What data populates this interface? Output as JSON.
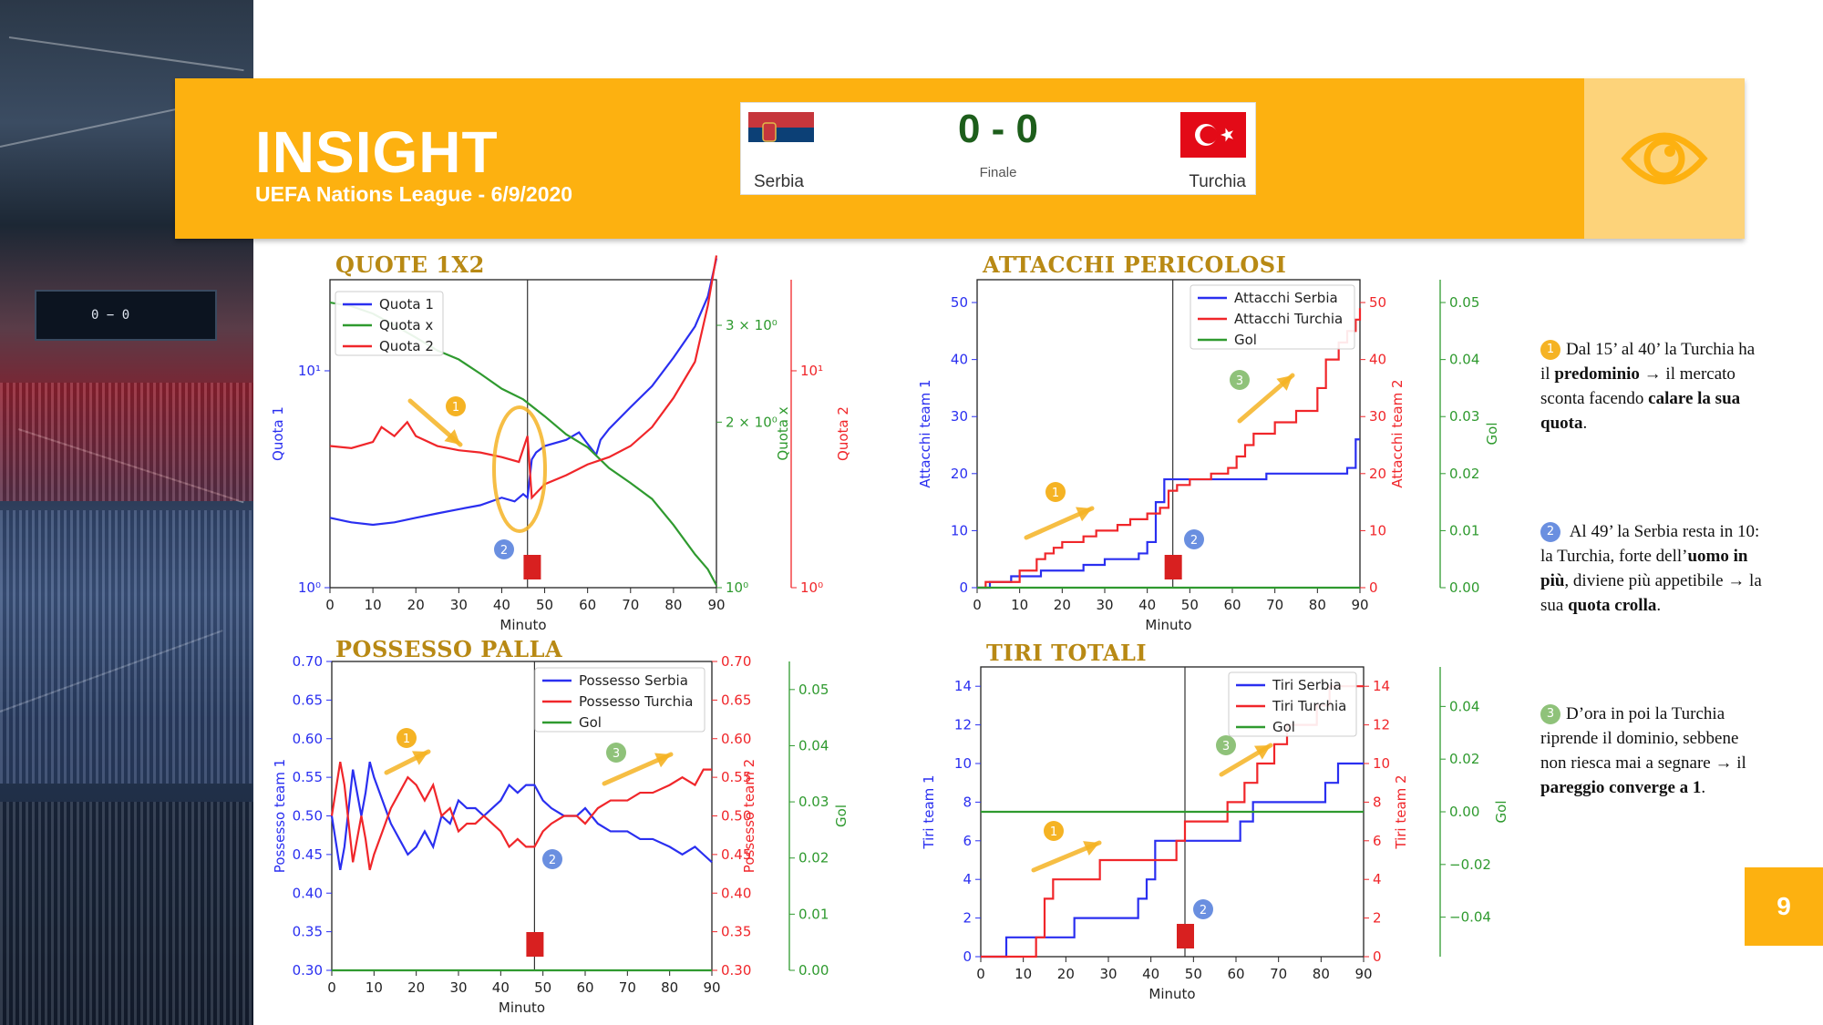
{
  "header": {
    "title": "INSIGHT",
    "subtitle": "UEFA Nations League  - 6/9/2020",
    "score": "0 - 0",
    "status": "Finale",
    "team_home": "Serbia",
    "team_away": "Turchia",
    "icon": "eye-icon"
  },
  "page_number": "9",
  "colors": {
    "accent": "#fdb110",
    "accent_light": "#fdd37a",
    "title_gold": "#b88914",
    "blue": "#2a2ff0",
    "red": "#f0262a",
    "green": "#2f9a2f",
    "marker": "#d82020",
    "badge_yellow": "#f5b324",
    "badge_blue": "#6a8fe0",
    "badge_green": "#8fc27a"
  },
  "notes": [
    {
      "num": "1",
      "pre": "Dal 15’ al 40’  la Turchia ha il ",
      "b1": "predominio",
      "mid": " → il mercato sconta facendo ",
      "b2": "calare la sua quota",
      "post": "."
    },
    {
      "num": "2",
      "pre": " Al 49’ la Serbia resta in 10: la Turchia, forte dell’",
      "b1": "uomo in più",
      "mid": ", diviene più appetibile → la sua ",
      "b2": "quota crolla",
      "post": "."
    },
    {
      "num": "3",
      "pre": "D’ora in poi la Turchia riprende il dominio, sebbene non riesca mai a segnare → il ",
      "b1": "pareggio converge a 1",
      "mid": "",
      "b2": "",
      "post": "."
    }
  ],
  "chart_data": [
    {
      "id": "quote",
      "type": "line",
      "title": "QUOTE 1X2",
      "xlabel": "Minuto",
      "ylabel_left": "Quota 1",
      "ylabel_right1": "Quota x",
      "ylabel_right2": "Quota 2",
      "xlim": [
        0,
        90
      ],
      "xticks": [
        "0",
        "10",
        "20",
        "30",
        "40",
        "50",
        "60",
        "70",
        "80",
        "90"
      ],
      "left_ticks": [
        {
          "v": 0,
          "label": "10⁰"
        },
        {
          "v": 1,
          "label": "10¹"
        }
      ],
      "right1_ticks": [
        {
          "v": 0,
          "label": "10⁰"
        },
        {
          "v": 0.301,
          "label": "2 × 10⁰"
        },
        {
          "v": 0.4771,
          "label": "3 × 10⁰"
        }
      ],
      "right2_ticks": [
        {
          "v": 0,
          "label": "10⁰"
        },
        {
          "v": 1,
          "label": "10¹"
        }
      ],
      "left_range": [
        0,
        1.42
      ],
      "right1_range": [
        0,
        0.56
      ],
      "right2_range": [
        0,
        1.42
      ],
      "event_minute": 46,
      "marker_minute": 47,
      "legend": [
        "Quota 1",
        "Quota x",
        "Quota 2"
      ],
      "series": [
        {
          "name": "Quota 1",
          "axis": "left",
          "color": "blue",
          "x": [
            0,
            5,
            10,
            15,
            20,
            25,
            30,
            35,
            40,
            43,
            45,
            46,
            47,
            48,
            50,
            55,
            58,
            60,
            62,
            63,
            65,
            70,
            75,
            80,
            85,
            88,
            90
          ],
          "y": [
            2.1,
            2.0,
            1.95,
            2.0,
            2.1,
            2.2,
            2.3,
            2.4,
            2.6,
            2.5,
            2.7,
            2.6,
            3.9,
            4.2,
            4.5,
            4.8,
            5.2,
            4.6,
            4.1,
            4.8,
            5.4,
            6.8,
            8.5,
            11.5,
            16,
            22,
            33
          ]
        },
        {
          "name": "Quota x",
          "axis": "right1",
          "color": "green",
          "x": [
            0,
            5,
            10,
            15,
            20,
            25,
            30,
            35,
            40,
            45,
            50,
            55,
            60,
            65,
            70,
            75,
            80,
            85,
            88,
            90
          ],
          "y": [
            3.3,
            3.25,
            3.15,
            3.0,
            2.85,
            2.7,
            2.6,
            2.45,
            2.3,
            2.2,
            2.05,
            1.9,
            1.8,
            1.65,
            1.55,
            1.45,
            1.3,
            1.15,
            1.08,
            1.01
          ]
        },
        {
          "name": "Quota 2",
          "axis": "right2",
          "color": "red",
          "x": [
            0,
            5,
            10,
            12,
            15,
            18,
            20,
            25,
            30,
            35,
            40,
            44,
            46,
            47,
            50,
            55,
            60,
            65,
            70,
            75,
            80,
            85,
            88,
            90
          ],
          "y": [
            4.5,
            4.4,
            4.7,
            5.5,
            5.0,
            5.8,
            5.0,
            4.5,
            4.3,
            4.2,
            4.0,
            3.8,
            5.0,
            2.6,
            3.0,
            3.3,
            3.7,
            4.0,
            4.5,
            5.5,
            7.5,
            11,
            20,
            34
          ]
        }
      ]
    },
    {
      "id": "attacchi",
      "type": "line",
      "title": "ATTACCHI PERICOLOSI",
      "xlabel": "Minuto",
      "ylabel_left": "Attacchi team 1",
      "ylabel_right1": "Attacchi team 2",
      "ylabel_right2": "Gol",
      "xlim": [
        0,
        90
      ],
      "xticks": [
        "0",
        "10",
        "20",
        "30",
        "40",
        "50",
        "60",
        "70",
        "80",
        "90"
      ],
      "left_ticks": [
        {
          "v": 0,
          "label": "0"
        },
        {
          "v": 10,
          "label": "10"
        },
        {
          "v": 20,
          "label": "20"
        },
        {
          "v": 30,
          "label": "30"
        },
        {
          "v": 40,
          "label": "40"
        },
        {
          "v": 50,
          "label": "50"
        }
      ],
      "right1_ticks": [
        {
          "v": 0,
          "label": "0"
        },
        {
          "v": 10,
          "label": "10"
        },
        {
          "v": 20,
          "label": "20"
        },
        {
          "v": 30,
          "label": "30"
        },
        {
          "v": 40,
          "label": "40"
        },
        {
          "v": 50,
          "label": "50"
        }
      ],
      "right2_ticks": [
        {
          "v": 0,
          "label": "0.00"
        },
        {
          "v": 0.01,
          "label": "0.01"
        },
        {
          "v": 0.02,
          "label": "0.02"
        },
        {
          "v": 0.03,
          "label": "0.03"
        },
        {
          "v": 0.04,
          "label": "0.04"
        },
        {
          "v": 0.05,
          "label": "0.05"
        }
      ],
      "left_range": [
        0,
        54
      ],
      "right1_range": [
        0,
        54
      ],
      "right2_range": [
        0,
        0.054
      ],
      "event_minute": 46,
      "marker_minute": 46,
      "legend": [
        "Attacchi Serbia",
        "Attacchi Turchia",
        "Gol"
      ],
      "series": [
        {
          "name": "Attacchi Serbia",
          "axis": "left",
          "color": "blue",
          "step": true,
          "x": [
            0,
            3,
            8,
            15,
            25,
            30,
            38,
            40,
            42,
            44,
            68,
            87,
            89,
            90
          ],
          "y": [
            0,
            1,
            2,
            3,
            4,
            5,
            6,
            8,
            15,
            19,
            20,
            21,
            26,
            26
          ]
        },
        {
          "name": "Attacchi Turchia",
          "axis": "right1",
          "color": "red",
          "step": true,
          "x": [
            0,
            2,
            5,
            10,
            14,
            16,
            18,
            20,
            25,
            28,
            33,
            36,
            40,
            43,
            45,
            47,
            50,
            52,
            55,
            59,
            61,
            63,
            65,
            70,
            75,
            80,
            82,
            85,
            87,
            89,
            90
          ],
          "y": [
            0,
            1,
            1,
            3,
            5,
            6,
            7,
            8,
            9,
            10,
            11,
            12,
            13,
            14,
            17,
            18,
            19,
            19,
            20,
            21,
            23,
            25,
            27,
            29,
            31,
            35,
            40,
            43,
            45,
            47,
            49
          ]
        },
        {
          "name": "Gol",
          "axis": "right2",
          "color": "green",
          "x": [
            0,
            90
          ],
          "y": [
            0,
            0
          ]
        }
      ]
    },
    {
      "id": "possesso",
      "type": "line",
      "title": "POSSESSO PALLA",
      "xlabel": "Minuto",
      "ylabel_left": "Possesso team 1",
      "ylabel_right1": "Possesso team 2",
      "ylabel_right2": "Gol",
      "xlim": [
        0,
        90
      ],
      "xticks": [
        "0",
        "10",
        "20",
        "30",
        "40",
        "50",
        "60",
        "70",
        "80",
        "90"
      ],
      "left_ticks": [
        {
          "v": 0.3,
          "label": "0.30"
        },
        {
          "v": 0.35,
          "label": "0.35"
        },
        {
          "v": 0.4,
          "label": "0.40"
        },
        {
          "v": 0.45,
          "label": "0.45"
        },
        {
          "v": 0.5,
          "label": "0.50"
        },
        {
          "v": 0.55,
          "label": "0.55"
        },
        {
          "v": 0.6,
          "label": "0.60"
        },
        {
          "v": 0.65,
          "label": "0.65"
        },
        {
          "v": 0.7,
          "label": "0.70"
        }
      ],
      "right1_ticks": [
        {
          "v": 0.3,
          "label": "0.30"
        },
        {
          "v": 0.35,
          "label": "0.35"
        },
        {
          "v": 0.4,
          "label": "0.40"
        },
        {
          "v": 0.45,
          "label": "0.45"
        },
        {
          "v": 0.5,
          "label": "0.50"
        },
        {
          "v": 0.55,
          "label": "0.55"
        },
        {
          "v": 0.6,
          "label": "0.60"
        },
        {
          "v": 0.65,
          "label": "0.65"
        },
        {
          "v": 0.7,
          "label": "0.70"
        }
      ],
      "right2_ticks": [
        {
          "v": 0,
          "label": "0.00"
        },
        {
          "v": 0.01,
          "label": "0.01"
        },
        {
          "v": 0.02,
          "label": "0.02"
        },
        {
          "v": 0.03,
          "label": "0.03"
        },
        {
          "v": 0.04,
          "label": "0.04"
        },
        {
          "v": 0.05,
          "label": "0.05"
        }
      ],
      "left_range": [
        0.3,
        0.7
      ],
      "right1_range": [
        0.3,
        0.7
      ],
      "right2_range": [
        0,
        0.055
      ],
      "event_minute": 48,
      "marker_minute": 48,
      "legend": [
        "Possesso Serbia",
        "Possesso Turchia",
        "Gol"
      ],
      "series": [
        {
          "name": "Possesso Serbia",
          "axis": "left",
          "color": "blue",
          "x": [
            0,
            2,
            3,
            5,
            7,
            8,
            9,
            10,
            12,
            14,
            16,
            18,
            20,
            22,
            24,
            26,
            28,
            30,
            32,
            34,
            36,
            38,
            40,
            42,
            44,
            46,
            48,
            50,
            52,
            55,
            58,
            60,
            63,
            66,
            70,
            73,
            76,
            80,
            83,
            86,
            88,
            90
          ],
          "y": [
            0.5,
            0.43,
            0.46,
            0.56,
            0.5,
            0.53,
            0.57,
            0.55,
            0.52,
            0.49,
            0.47,
            0.45,
            0.46,
            0.48,
            0.46,
            0.5,
            0.49,
            0.52,
            0.51,
            0.51,
            0.5,
            0.51,
            0.52,
            0.54,
            0.53,
            0.54,
            0.54,
            0.52,
            0.51,
            0.5,
            0.5,
            0.51,
            0.49,
            0.48,
            0.48,
            0.47,
            0.47,
            0.46,
            0.45,
            0.46,
            0.45,
            0.44
          ]
        },
        {
          "name": "Possesso Turchia",
          "axis": "right1",
          "color": "red",
          "x": [
            0,
            2,
            3,
            5,
            7,
            8,
            9,
            10,
            12,
            14,
            16,
            18,
            20,
            22,
            24,
            26,
            28,
            30,
            32,
            34,
            36,
            38,
            40,
            42,
            44,
            46,
            48,
            50,
            52,
            55,
            58,
            60,
            63,
            66,
            70,
            73,
            76,
            80,
            83,
            86,
            88,
            90
          ],
          "y": [
            0.5,
            0.57,
            0.54,
            0.44,
            0.5,
            0.47,
            0.43,
            0.45,
            0.48,
            0.51,
            0.53,
            0.55,
            0.54,
            0.52,
            0.54,
            0.5,
            0.51,
            0.48,
            0.49,
            0.49,
            0.5,
            0.49,
            0.48,
            0.46,
            0.47,
            0.46,
            0.46,
            0.48,
            0.49,
            0.5,
            0.5,
            0.49,
            0.51,
            0.52,
            0.52,
            0.53,
            0.53,
            0.54,
            0.55,
            0.54,
            0.56,
            0.56
          ]
        },
        {
          "name": "Gol",
          "axis": "right2",
          "color": "green",
          "x": [
            0,
            90
          ],
          "y": [
            0,
            0
          ]
        }
      ]
    },
    {
      "id": "tiri",
      "type": "line",
      "title": "TIRI TOTALI",
      "xlabel": "Minuto",
      "ylabel_left": "Tiri team 1",
      "ylabel_right1": "Tiri team 2",
      "ylabel_right2": "Gol",
      "xlim": [
        0,
        90
      ],
      "xticks": [
        "0",
        "10",
        "20",
        "30",
        "40",
        "50",
        "60",
        "70",
        "80",
        "90"
      ],
      "left_ticks": [
        {
          "v": 0,
          "label": "0"
        },
        {
          "v": 2,
          "label": "2"
        },
        {
          "v": 4,
          "label": "4"
        },
        {
          "v": 6,
          "label": "6"
        },
        {
          "v": 8,
          "label": "8"
        },
        {
          "v": 10,
          "label": "10"
        },
        {
          "v": 12,
          "label": "12"
        },
        {
          "v": 14,
          "label": "14"
        }
      ],
      "right1_ticks": [
        {
          "v": 0,
          "label": "0"
        },
        {
          "v": 2,
          "label": "2"
        },
        {
          "v": 4,
          "label": "4"
        },
        {
          "v": 6,
          "label": "6"
        },
        {
          "v": 8,
          "label": "8"
        },
        {
          "v": 10,
          "label": "10"
        },
        {
          "v": 12,
          "label": "12"
        },
        {
          "v": 14,
          "label": "14"
        }
      ],
      "right2_ticks": [
        {
          "v": -0.04,
          "label": "−0.04"
        },
        {
          "v": -0.02,
          "label": "−0.02"
        },
        {
          "v": 0,
          "label": "0.00"
        },
        {
          "v": 0.02,
          "label": "0.02"
        },
        {
          "v": 0.04,
          "label": "0.04"
        }
      ],
      "left_range": [
        0,
        15
      ],
      "right1_range": [
        0,
        15
      ],
      "right2_range": [
        -0.055,
        0.055
      ],
      "event_minute": 48,
      "marker_minute": 48,
      "legend": [
        "Tiri  Serbia",
        "Tiri  Turchia",
        "Gol"
      ],
      "series": [
        {
          "name": "Tiri  Serbia",
          "axis": "left",
          "color": "blue",
          "step": true,
          "x": [
            0,
            4,
            6,
            22,
            37,
            39,
            41,
            61,
            64,
            81,
            84,
            86,
            88,
            90
          ],
          "y": [
            0,
            0,
            1,
            2,
            3,
            4,
            6,
            7,
            8,
            9,
            10,
            10,
            10,
            10
          ]
        },
        {
          "name": "Tiri  Turchia",
          "axis": "right1",
          "color": "red",
          "step": true,
          "x": [
            0,
            10,
            13,
            15,
            17,
            28,
            46,
            48,
            58,
            62,
            65,
            69,
            72,
            79,
            82,
            84,
            87,
            90
          ],
          "y": [
            0,
            0,
            1,
            3,
            4,
            5,
            6,
            7,
            8,
            9,
            10,
            11,
            12,
            13,
            14,
            14,
            14,
            14
          ]
        },
        {
          "name": "Gol",
          "axis": "right2",
          "color": "green",
          "x": [
            0,
            90
          ],
          "y": [
            0,
            0
          ]
        }
      ]
    }
  ]
}
